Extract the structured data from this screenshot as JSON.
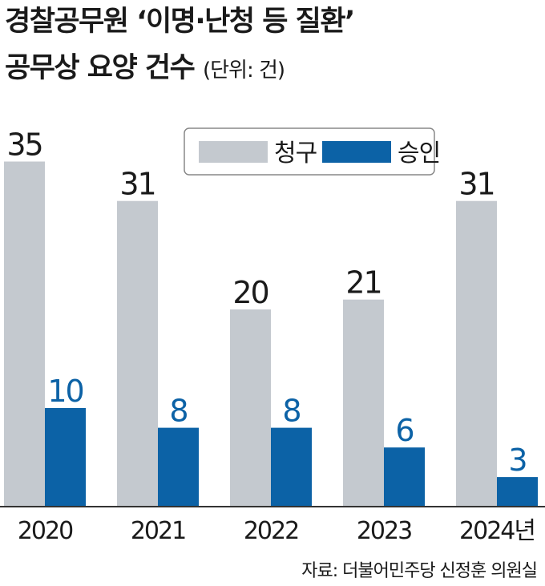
{
  "title": {
    "line1": "경찰공무원 ‘이명·난청 등 질환’",
    "line2": "공무상 요양 건수",
    "unit": "(단위: 건)"
  },
  "source": "자료: 더불어민주당 신정훈 의원실",
  "colors": {
    "claim": "#c4c9cf",
    "approval": "#0c62a6",
    "axis": "#333333",
    "legend_border": "#888888"
  },
  "chart_data": {
    "type": "bar",
    "categories": [
      "2020",
      "2021",
      "2022",
      "2023",
      "2024년"
    ],
    "series": [
      {
        "name": "청구",
        "values": [
          35,
          31,
          20,
          21,
          31
        ]
      },
      {
        "name": "승인",
        "values": [
          10,
          8,
          8,
          6,
          3
        ]
      }
    ],
    "ylim": [
      0,
      35
    ],
    "grid": false,
    "legend": "top-right"
  }
}
